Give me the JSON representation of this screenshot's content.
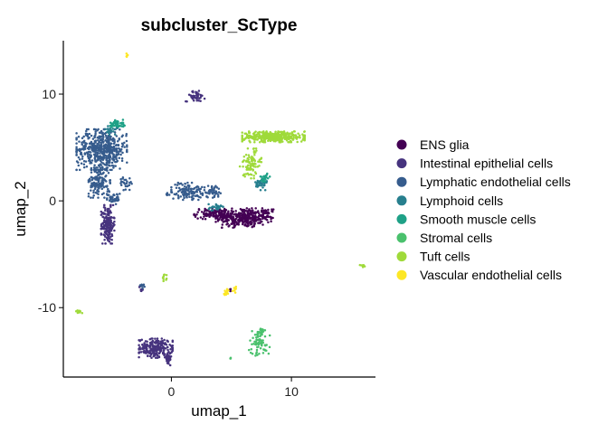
{
  "chart_data": {
    "type": "scatter",
    "title": "subcluster_ScType",
    "xlabel": "umap_1",
    "ylabel": "umap_2",
    "xlim": [
      -9,
      17
    ],
    "ylim": [
      -16.5,
      15
    ],
    "x_ticks": [
      {
        "value": 0,
        "label": "0"
      },
      {
        "value": 10,
        "label": "10"
      }
    ],
    "y_ticks": [
      {
        "value": -10,
        "label": "-10"
      },
      {
        "value": 0,
        "label": "0"
      },
      {
        "value": 10,
        "label": "10"
      }
    ],
    "grid": false,
    "legend_position": "right",
    "series": [
      {
        "name": "ENS glia",
        "color": "#440154",
        "clusters": [
          {
            "cx": 6.0,
            "cy": -1.6,
            "rx": 2.3,
            "ry": 0.9,
            "n": 320
          },
          {
            "cx": 3.5,
            "cy": -1.2,
            "rx": 1.6,
            "ry": 0.5,
            "n": 110
          },
          {
            "cx": 8.0,
            "cy": -1.2,
            "rx": 0.5,
            "ry": 0.4,
            "n": 25
          },
          {
            "cx": 4.9,
            "cy": -8.3,
            "rx": 0.2,
            "ry": 0.2,
            "n": 4
          }
        ]
      },
      {
        "name": "Intestinal epithelial cells",
        "color": "#46337E",
        "clusters": [
          {
            "cx": -1.3,
            "cy": -13.8,
            "rx": 1.4,
            "ry": 0.9,
            "n": 220
          },
          {
            "cx": -0.3,
            "cy": -14.8,
            "rx": 0.3,
            "ry": 0.6,
            "n": 35
          },
          {
            "cx": 2.0,
            "cy": 9.8,
            "rx": 0.8,
            "ry": 0.5,
            "n": 45
          },
          {
            "cx": -5.3,
            "cy": -2.2,
            "rx": 0.55,
            "ry": 1.8,
            "n": 180
          },
          {
            "cx": -2.5,
            "cy": -8.2,
            "rx": 0.2,
            "ry": 0.4,
            "n": 10
          }
        ]
      },
      {
        "name": "Lymphatic endothelial cells",
        "color": "#365C8D",
        "clusters": [
          {
            "cx": -5.8,
            "cy": 4.8,
            "rx": 2.1,
            "ry": 1.9,
            "n": 520
          },
          {
            "cx": -6.0,
            "cy": 1.7,
            "rx": 0.9,
            "ry": 1.4,
            "n": 140
          },
          {
            "cx": -4.8,
            "cy": 0.2,
            "rx": 0.6,
            "ry": 0.5,
            "n": 35
          },
          {
            "cx": -3.8,
            "cy": 1.6,
            "rx": 0.5,
            "ry": 0.6,
            "n": 25
          },
          {
            "cx": 1.3,
            "cy": 0.9,
            "rx": 1.3,
            "ry": 0.8,
            "n": 120
          },
          {
            "cx": 3.4,
            "cy": 0.9,
            "rx": 0.7,
            "ry": 0.6,
            "n": 45
          },
          {
            "cx": -0.3,
            "cy": 0.6,
            "rx": 0.2,
            "ry": 0.2,
            "n": 6
          },
          {
            "cx": -2.4,
            "cy": -8.0,
            "rx": 0.2,
            "ry": 0.3,
            "n": 8
          }
        ]
      },
      {
        "name": "Lymphoid cells",
        "color": "#277F8E",
        "clusters": [
          {
            "cx": 7.5,
            "cy": 1.6,
            "rx": 0.5,
            "ry": 0.6,
            "n": 45
          },
          {
            "cx": 3.7,
            "cy": -0.6,
            "rx": 0.6,
            "ry": 0.3,
            "n": 30
          },
          {
            "cx": -5.0,
            "cy": 6.6,
            "rx": 0.5,
            "ry": 0.4,
            "n": 20
          }
        ]
      },
      {
        "name": "Smooth muscle cells",
        "color": "#1FA187",
        "clusters": [
          {
            "cx": -4.5,
            "cy": 7.2,
            "rx": 0.6,
            "ry": 0.4,
            "n": 45
          },
          {
            "cx": 7.8,
            "cy": 2.2,
            "rx": 0.4,
            "ry": 0.4,
            "n": 20
          }
        ]
      },
      {
        "name": "Stromal cells",
        "color": "#4AC16D",
        "clusters": [
          {
            "cx": 7.3,
            "cy": -13.3,
            "rx": 0.9,
            "ry": 1.2,
            "n": 70
          },
          {
            "cx": 7.5,
            "cy": -12.2,
            "rx": 0.3,
            "ry": 0.3,
            "n": 15
          },
          {
            "cx": 4.9,
            "cy": -14.7,
            "rx": 0.1,
            "ry": 0.1,
            "n": 3
          }
        ]
      },
      {
        "name": "Tuft cells",
        "color": "#9FDA3A",
        "clusters": [
          {
            "cx": 8.5,
            "cy": 6.0,
            "rx": 2.6,
            "ry": 0.5,
            "n": 380
          },
          {
            "cx": 6.6,
            "cy": 3.5,
            "rx": 0.9,
            "ry": 1.4,
            "n": 90
          },
          {
            "cx": -7.7,
            "cy": -10.4,
            "rx": 0.3,
            "ry": 0.2,
            "n": 12
          },
          {
            "cx": 15.9,
            "cy": -6.1,
            "rx": 0.2,
            "ry": 0.1,
            "n": 8
          },
          {
            "cx": -0.6,
            "cy": -7.2,
            "rx": 0.2,
            "ry": 0.4,
            "n": 10
          }
        ]
      },
      {
        "name": "Vascular endothelial cells",
        "color": "#FDE725",
        "clusters": [
          {
            "cx": -3.7,
            "cy": 13.6,
            "rx": 0.1,
            "ry": 0.2,
            "n": 6
          },
          {
            "cx": 4.6,
            "cy": -8.5,
            "rx": 0.3,
            "ry": 0.3,
            "n": 12
          },
          {
            "cx": 5.3,
            "cy": -8.3,
            "rx": 0.2,
            "ry": 0.3,
            "n": 8
          }
        ]
      }
    ]
  }
}
